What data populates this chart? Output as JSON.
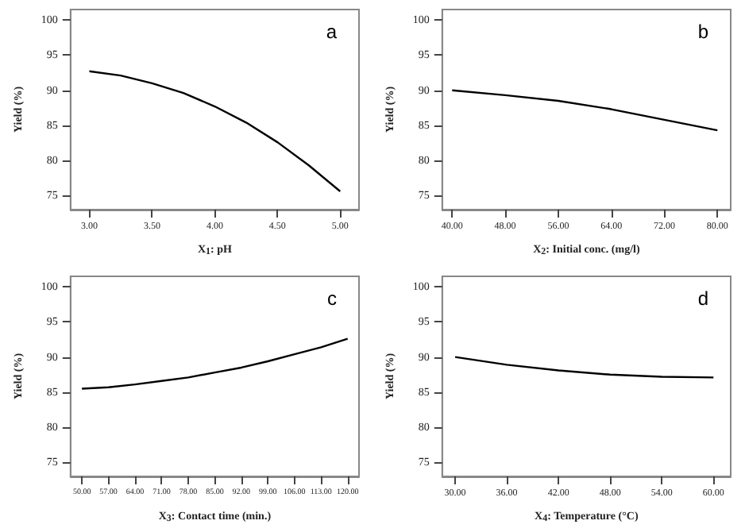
{
  "chart_data": [
    {
      "type": "line",
      "annotations": [
        "a"
      ],
      "ylabel": "Yield (%)",
      "xlabel": "X$_{1}$: pH",
      "x": [
        3.0,
        3.25,
        3.5,
        3.75,
        4.0,
        4.25,
        4.5,
        4.75,
        5.0
      ],
      "values": [
        92.7,
        92.1,
        91.0,
        89.6,
        87.7,
        85.4,
        82.6,
        79.3,
        75.6
      ],
      "color": "#000000",
      "xlim": [
        2.85,
        5.15
      ],
      "xticks": [
        {
          "value": 3,
          "label": "3.00"
        },
        {
          "value": 3.5,
          "label": "3.50"
        },
        {
          "value": 4,
          "label": "4.00"
        },
        {
          "value": 4.5,
          "label": "4.50"
        },
        {
          "value": 5,
          "label": "5.00"
        }
      ],
      "ylim": [
        73,
        101.5
      ],
      "yticks": [
        75,
        80,
        85,
        90,
        95,
        100
      ],
      "grid": false,
      "marker": "none",
      "line_style": "solid"
    },
    {
      "type": "line",
      "annotations": [
        "b"
      ],
      "ylabel": "Yield (%)",
      "xlabel": "X$_{2}$: Initial conc. (mg/l)",
      "x": [
        40,
        48,
        56,
        64,
        72,
        80
      ],
      "values": [
        90.0,
        89.3,
        88.5,
        87.3,
        85.8,
        84.3
      ],
      "color": "#000000",
      "xlim": [
        38.5,
        82
      ],
      "xticks": [
        {
          "value": 40,
          "label": "40.00"
        },
        {
          "value": 48,
          "label": "48.00"
        },
        {
          "value": 56,
          "label": "56.00"
        },
        {
          "value": 64,
          "label": "64.00"
        },
        {
          "value": 72,
          "label": "72.00"
        },
        {
          "value": 80,
          "label": "80.00"
        }
      ],
      "ylim": [
        73,
        101.5
      ],
      "yticks": [
        75,
        80,
        85,
        90,
        95,
        100
      ],
      "grid": false,
      "marker": "none",
      "line_style": "solid"
    },
    {
      "type": "line",
      "annotations": [
        "c"
      ],
      "ylabel": "Yield (%)",
      "xlabel": "X$_{3}$: Contact time (min.)",
      "x": [
        50,
        57,
        64,
        71,
        78,
        85,
        92,
        99,
        106,
        113,
        120
      ],
      "values": [
        85.5,
        85.7,
        86.1,
        86.6,
        87.1,
        87.8,
        88.5,
        89.4,
        90.4,
        91.4,
        92.6
      ],
      "color": "#000000",
      "xlim": [
        47,
        123
      ],
      "xticks": [
        {
          "value": 50,
          "label": "50.00"
        },
        {
          "value": 57,
          "label": "57.00"
        },
        {
          "value": 64,
          "label": "64.00"
        },
        {
          "value": 71,
          "label": "71.00"
        },
        {
          "value": 78,
          "label": "78.00"
        },
        {
          "value": 85,
          "label": "85.00"
        },
        {
          "value": 92,
          "label": "92.00"
        },
        {
          "value": 99,
          "label": "99.00"
        },
        {
          "value": 106,
          "label": "106.00"
        },
        {
          "value": 113,
          "label": "113.00"
        },
        {
          "value": 120,
          "label": "120.00"
        }
      ],
      "ylim": [
        73,
        101.5
      ],
      "yticks": [
        75,
        80,
        85,
        90,
        95,
        100
      ],
      "grid": false,
      "marker": "none",
      "line_style": "solid"
    },
    {
      "type": "line",
      "annotations": [
        "d"
      ],
      "ylabel": "Yield (%)",
      "xlabel": "X$_{4}$: Temperature (°C)",
      "x": [
        30,
        36,
        42,
        48,
        54,
        60
      ],
      "values": [
        90.0,
        88.9,
        88.1,
        87.5,
        87.2,
        87.1
      ],
      "color": "#000000",
      "xlim": [
        28.5,
        62
      ],
      "xticks": [
        {
          "value": 30,
          "label": "30.00"
        },
        {
          "value": 36,
          "label": "36.00"
        },
        {
          "value": 42,
          "label": "42.00"
        },
        {
          "value": 48,
          "label": "48.00"
        },
        {
          "value": 54,
          "label": "54.00"
        },
        {
          "value": 60,
          "label": "60.00"
        }
      ],
      "ylim": [
        73,
        101.5
      ],
      "yticks": [
        75,
        80,
        85,
        90,
        95,
        100
      ],
      "grid": false,
      "marker": "none",
      "line_style": "solid"
    }
  ]
}
